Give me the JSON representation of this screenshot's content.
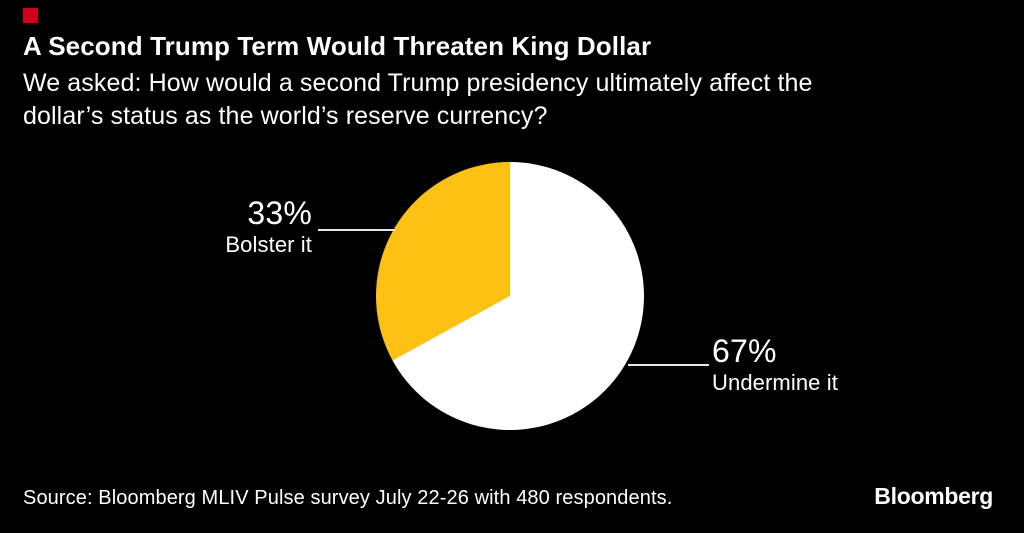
{
  "colors": {
    "background": "#000000",
    "text": "#ffffff",
    "brand_red": "#d0021b",
    "callout_line": "#e6e6e6"
  },
  "header": {
    "title": "A Second Trump Term Would Threaten King Dollar",
    "subtitle_lines": [
      "We asked: How would a second Trump presidency ultimately affect the",
      "dollar’s status as the world’s reserve currency?"
    ]
  },
  "chart_data": {
    "type": "pie",
    "title": "A Second Trump Term Would Threaten King Dollar",
    "subtitle": "We asked: How would a second Trump presidency ultimately affect the dollar’s status as the world’s reserve currency?",
    "start_angle_deg_from_top": 0,
    "direction": "white slice sweeps clockwise from 12 o'clock; yellow slice fills remainder back to 12 o'clock",
    "slices": [
      {
        "label": "Undermine it",
        "pct_label": "67%",
        "value": 67,
        "color": "#ffffff"
      },
      {
        "label": "Bolster it",
        "pct_label": "33%",
        "value": 33,
        "color": "#fdc114"
      }
    ],
    "legend_position": "callout labels left and right of pie"
  },
  "footer": {
    "source": "Source: Bloomberg MLIV Pulse survey July 22-26 with 480 respondents.",
    "logo": "Bloomberg"
  }
}
